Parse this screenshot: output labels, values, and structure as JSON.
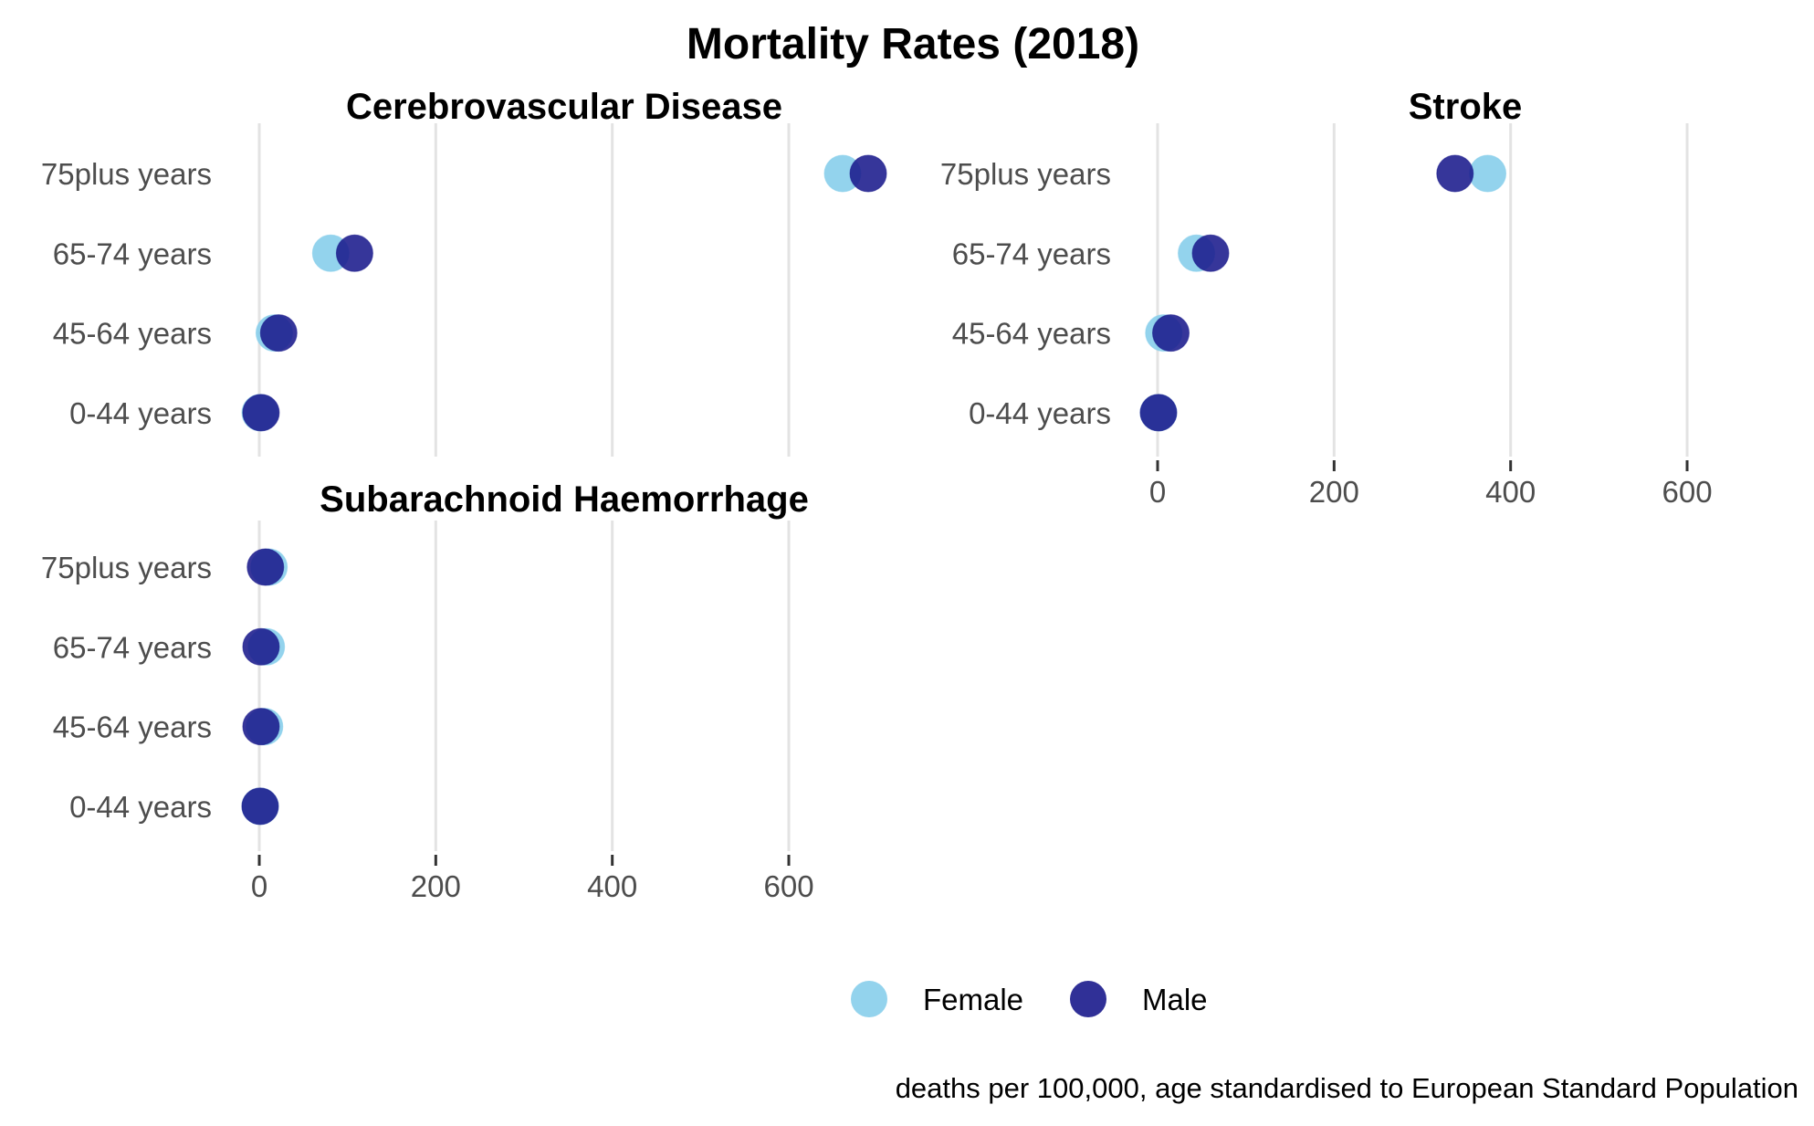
{
  "title": "Mortality Rates (2018)",
  "caption": "deaths per 100,000, age standardised to European Standard Population",
  "colors": {
    "Female": "#87CEEB",
    "Male": "#1A1A8C"
  },
  "chart_data": {
    "type": "scatter",
    "title": "Mortality Rates (2018)",
    "caption": "deaths per 100,000, age standardised to European Standard Population",
    "categories": [
      "75plus years",
      "65-74 years",
      "45-64 years",
      "0-44 years"
    ],
    "xlim": [
      0,
      600
    ],
    "x_ticks": [
      "0",
      "200",
      "400",
      "600"
    ],
    "grid": "vertical major",
    "legend": {
      "position": "bottom",
      "entries": [
        "Female",
        "Male"
      ]
    },
    "series_names": [
      "Female",
      "Male"
    ],
    "panels": [
      {
        "title": "Cerebrovascular Disease",
        "series": [
          {
            "name": "Female",
            "values": [
              661,
              81,
              17,
              1
            ]
          },
          {
            "name": "Male",
            "values": [
              690,
              108,
              22,
              2
            ]
          }
        ]
      },
      {
        "title": "Stroke",
        "series": [
          {
            "name": "Female",
            "values": [
              374,
              44,
              7,
              1
            ]
          },
          {
            "name": "Male",
            "values": [
              337,
              60,
              15,
              1
            ]
          }
        ]
      },
      {
        "title": "Subarachnoid Haemorrhage",
        "series": [
          {
            "name": "Female",
            "values": [
              11,
              8,
              6,
              1
            ]
          },
          {
            "name": "Male",
            "values": [
              7,
              2,
              2,
              1
            ]
          }
        ]
      }
    ]
  }
}
